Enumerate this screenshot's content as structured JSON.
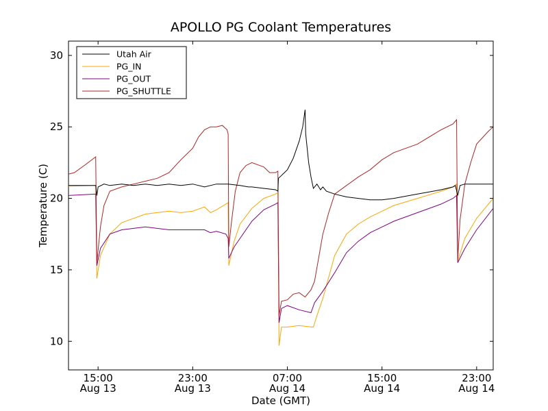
{
  "chart_data": {
    "type": "line",
    "title": "APOLLO PG Coolant Temperatures",
    "xlabel": "Date (GMT)",
    "ylabel": "Temperature (C)",
    "x_unit": "hours since Aug 13 00:00 GMT",
    "xlim": [
      12.5,
      48.4
    ],
    "ylim": [
      8,
      31
    ],
    "yticks": [
      10,
      15,
      20,
      25,
      30
    ],
    "xticks": [
      {
        "x": 15,
        "line1": "15:00",
        "line2": "Aug 13"
      },
      {
        "x": 23,
        "line1": "23:00",
        "line2": "Aug 13"
      },
      {
        "x": 31,
        "line1": "07:00",
        "line2": "Aug 14"
      },
      {
        "x": 39,
        "line1": "15:00",
        "line2": "Aug 14"
      },
      {
        "x": 47,
        "line1": "23:00",
        "line2": "Aug 14"
      }
    ],
    "legend_position": "top-left",
    "series": [
      {
        "name": "Utah Air",
        "color": "#000000",
        "points": [
          [
            12.5,
            20.9
          ],
          [
            14.8,
            20.9
          ],
          [
            14.9,
            20.2
          ],
          [
            15.0,
            20.8
          ],
          [
            15.5,
            21.0
          ],
          [
            16,
            20.9
          ],
          [
            17,
            21.0
          ],
          [
            18,
            20.9
          ],
          [
            19,
            21.0
          ],
          [
            20,
            20.9
          ],
          [
            21,
            21.0
          ],
          [
            22,
            20.9
          ],
          [
            23,
            21.0
          ],
          [
            24,
            20.8
          ],
          [
            25,
            21.0
          ],
          [
            26,
            21.0
          ],
          [
            27,
            20.9
          ],
          [
            27.7,
            20.8
          ],
          [
            28,
            20.8
          ],
          [
            29,
            20.7
          ],
          [
            30,
            20.6
          ],
          [
            30.2,
            20.5
          ],
          [
            30.25,
            21.4
          ],
          [
            30.5,
            21.6
          ],
          [
            31,
            22.0
          ],
          [
            31.5,
            22.8
          ],
          [
            32,
            24.0
          ],
          [
            32.3,
            25.0
          ],
          [
            32.5,
            26.2
          ],
          [
            32.55,
            24.5
          ],
          [
            32.8,
            22.5
          ],
          [
            33.0,
            21.5
          ],
          [
            33.2,
            20.7
          ],
          [
            33.5,
            21.0
          ],
          [
            33.8,
            20.6
          ],
          [
            34,
            20.8
          ],
          [
            34.3,
            20.5
          ],
          [
            35,
            20.3
          ],
          [
            36,
            20.1
          ],
          [
            37,
            20.0
          ],
          [
            38,
            19.9
          ],
          [
            39,
            19.9
          ],
          [
            40,
            20.0
          ],
          [
            42,
            20.3
          ],
          [
            44,
            20.6
          ],
          [
            45,
            20.8
          ],
          [
            45.2,
            20.9
          ],
          [
            45.4,
            20.2
          ],
          [
            45.6,
            20.9
          ],
          [
            46,
            21.0
          ],
          [
            47,
            21.0
          ],
          [
            48.4,
            21.0
          ]
        ]
      },
      {
        "name": "PG_IN",
        "color": "#ffa500",
        "points": [
          [
            12.5,
            20.85
          ],
          [
            14.8,
            20.9
          ],
          [
            14.9,
            14.4
          ],
          [
            15.2,
            16.0
          ],
          [
            16,
            17.5
          ],
          [
            17,
            18.3
          ],
          [
            18,
            18.6
          ],
          [
            19,
            18.9
          ],
          [
            20,
            19.0
          ],
          [
            21,
            19.1
          ],
          [
            22,
            19.0
          ],
          [
            23,
            19.1
          ],
          [
            24,
            19.4
          ],
          [
            24.5,
            19.0
          ],
          [
            25,
            19.2
          ],
          [
            25.8,
            19.6
          ],
          [
            26.0,
            19.7
          ],
          [
            26.05,
            15.3
          ],
          [
            26.5,
            17.0
          ],
          [
            27,
            18.2
          ],
          [
            28,
            19.3
          ],
          [
            29,
            20.0
          ],
          [
            30,
            20.3
          ],
          [
            30.2,
            20.4
          ],
          [
            30.3,
            9.7
          ],
          [
            30.5,
            11.0
          ],
          [
            31,
            11.0
          ],
          [
            32,
            11.1
          ],
          [
            33.0,
            11.0
          ],
          [
            33.2,
            11.0
          ],
          [
            33.5,
            11.8
          ],
          [
            34,
            13.0
          ],
          [
            35,
            16.0
          ],
          [
            36,
            17.5
          ],
          [
            37,
            18.2
          ],
          [
            38,
            18.7
          ],
          [
            39,
            19.1
          ],
          [
            40,
            19.5
          ],
          [
            42,
            20.0
          ],
          [
            44,
            20.5
          ],
          [
            45,
            20.8
          ],
          [
            45.3,
            21.0
          ],
          [
            45.4,
            15.6
          ],
          [
            46,
            17.2
          ],
          [
            47,
            18.6
          ],
          [
            48.4,
            20.0
          ]
        ]
      },
      {
        "name": "PG_OUT",
        "color": "#800080",
        "points": [
          [
            12.5,
            20.2
          ],
          [
            14.8,
            20.3
          ],
          [
            14.9,
            15.3
          ],
          [
            15.2,
            16.5
          ],
          [
            16,
            17.5
          ],
          [
            17,
            17.8
          ],
          [
            18,
            17.9
          ],
          [
            19,
            18.0
          ],
          [
            20,
            17.9
          ],
          [
            21,
            17.8
          ],
          [
            22,
            17.8
          ],
          [
            23,
            17.8
          ],
          [
            24,
            17.8
          ],
          [
            24.5,
            17.6
          ],
          [
            25,
            17.7
          ],
          [
            25.8,
            17.5
          ],
          [
            26.0,
            17.2
          ],
          [
            26.05,
            15.8
          ],
          [
            26.5,
            16.6
          ],
          [
            27,
            17.2
          ],
          [
            28,
            18.4
          ],
          [
            29,
            19.2
          ],
          [
            30,
            19.6
          ],
          [
            30.2,
            19.7
          ],
          [
            30.3,
            11.3
          ],
          [
            30.5,
            12.3
          ],
          [
            31,
            12.5
          ],
          [
            32,
            12.2
          ],
          [
            33.0,
            12.0
          ],
          [
            33.3,
            12.7
          ],
          [
            34,
            13.5
          ],
          [
            35,
            14.8
          ],
          [
            36,
            16.2
          ],
          [
            37,
            17.0
          ],
          [
            38,
            17.6
          ],
          [
            39,
            18.0
          ],
          [
            40,
            18.4
          ],
          [
            42,
            19.0
          ],
          [
            44,
            19.6
          ],
          [
            45,
            20.0
          ],
          [
            45.3,
            20.2
          ],
          [
            45.4,
            15.5
          ],
          [
            46,
            16.5
          ],
          [
            47,
            17.8
          ],
          [
            48.4,
            19.3
          ]
        ]
      },
      {
        "name": "PG_SHUTTLE",
        "color": "#b22222",
        "points": [
          [
            12.5,
            21.7
          ],
          [
            13,
            21.8
          ],
          [
            14,
            22.4
          ],
          [
            14.8,
            22.9
          ],
          [
            14.9,
            15.5
          ],
          [
            15.2,
            18.0
          ],
          [
            15.5,
            19.5
          ],
          [
            16,
            20.5
          ],
          [
            17,
            20.8
          ],
          [
            18,
            21.0
          ],
          [
            19,
            21.2
          ],
          [
            20,
            21.4
          ],
          [
            21,
            21.8
          ],
          [
            22,
            22.7
          ],
          [
            23,
            23.5
          ],
          [
            23.5,
            24.3
          ],
          [
            24,
            24.8
          ],
          [
            24.5,
            25.0
          ],
          [
            25,
            25.0
          ],
          [
            25.5,
            25.1
          ],
          [
            25.9,
            24.8
          ],
          [
            26.0,
            24.5
          ],
          [
            26.05,
            16.6
          ],
          [
            26.3,
            18.5
          ],
          [
            26.6,
            20.5
          ],
          [
            27,
            21.8
          ],
          [
            27.5,
            22.3
          ],
          [
            28,
            22.5
          ],
          [
            29,
            22.2
          ],
          [
            29.5,
            21.8
          ],
          [
            30,
            21.8
          ],
          [
            30.2,
            21.9
          ],
          [
            30.3,
            11.8
          ],
          [
            30.5,
            12.8
          ],
          [
            31,
            12.9
          ],
          [
            31.5,
            13.3
          ],
          [
            32,
            13.4
          ],
          [
            32.5,
            13.1
          ],
          [
            33,
            13.6
          ],
          [
            33.3,
            14.2
          ],
          [
            34,
            17.5
          ],
          [
            34.5,
            19.0
          ],
          [
            35,
            20.3
          ],
          [
            36,
            20.9
          ],
          [
            37,
            21.5
          ],
          [
            38,
            22.0
          ],
          [
            39,
            22.7
          ],
          [
            40,
            23.2
          ],
          [
            42,
            23.8
          ],
          [
            44,
            24.8
          ],
          [
            45,
            25.2
          ],
          [
            45.3,
            25.5
          ],
          [
            45.4,
            15.7
          ],
          [
            45.6,
            18.5
          ],
          [
            46,
            21.0
          ],
          [
            46.5,
            22.5
          ],
          [
            47,
            23.8
          ],
          [
            48,
            24.7
          ],
          [
            48.4,
            25.0
          ]
        ]
      }
    ]
  }
}
